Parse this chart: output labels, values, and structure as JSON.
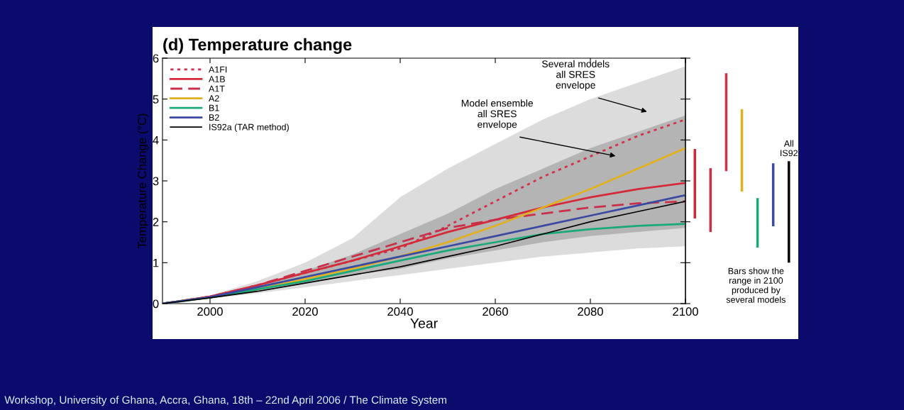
{
  "chart_data": [
    {
      "type": "line",
      "title": "(d) Temperature change",
      "xlabel": "Year",
      "ylabel": "Temperature Change (°C)",
      "x": [
        1990,
        2000,
        2010,
        2020,
        2030,
        2040,
        2050,
        2060,
        2070,
        2080,
        2090,
        2100
      ],
      "series": [
        {
          "color": "#dcdcdc",
          "values": [
            null,
            null,
            null,
            null,
            null,
            null,
            null,
            null,
            null,
            null,
            null,
            null
          ],
          "lower": [
            0,
            0.12,
            0.25,
            0.4,
            0.55,
            0.7,
            0.85,
            1.0,
            1.15,
            1.25,
            1.35,
            1.4
          ],
          "upper": [
            0,
            0.2,
            0.55,
            1.0,
            1.6,
            2.6,
            3.3,
            3.9,
            4.5,
            5.0,
            5.4,
            5.8
          ]
        },
        {
          "color": "#b4b4b4",
          "values": [
            null,
            null,
            null,
            null,
            null,
            null,
            null,
            null,
            null,
            null,
            null,
            null
          ],
          "lower": [
            0,
            0.15,
            0.3,
            0.5,
            0.7,
            0.85,
            1.1,
            1.3,
            1.5,
            1.65,
            1.75,
            1.85
          ],
          "upper": [
            0,
            0.2,
            0.45,
            0.8,
            1.2,
            1.7,
            2.2,
            2.8,
            3.3,
            3.8,
            4.2,
            4.6
          ]
        },
        {
          "name": "A1FI",
          "color": "#d4304a",
          "line_style": "dotted",
          "values": [
            0,
            0.17,
            0.45,
            0.75,
            1.05,
            1.35,
            1.9,
            2.5,
            3.1,
            3.6,
            4.1,
            4.5
          ]
        },
        {
          "name": "A1B",
          "color": "#d42a3a",
          "line_style": "solid",
          "values": [
            0,
            0.17,
            0.45,
            0.75,
            1.05,
            1.4,
            1.75,
            2.05,
            2.35,
            2.6,
            2.8,
            2.95
          ]
        },
        {
          "name": "A1T",
          "color": "#c8304a",
          "line_style": "dashed",
          "values": [
            0,
            0.17,
            0.45,
            0.8,
            1.15,
            1.5,
            1.85,
            2.05,
            2.2,
            2.35,
            2.45,
            2.5
          ]
        },
        {
          "name": "A2",
          "color": "#e0b020",
          "line_style": "solid",
          "values": [
            0,
            0.15,
            0.35,
            0.6,
            0.85,
            1.15,
            1.5,
            1.9,
            2.35,
            2.8,
            3.3,
            3.8
          ]
        },
        {
          "name": "B1",
          "color": "#1aaa7a",
          "line_style": "solid",
          "values": [
            0,
            0.15,
            0.35,
            0.55,
            0.8,
            1.05,
            1.3,
            1.5,
            1.7,
            1.82,
            1.9,
            1.95
          ]
        },
        {
          "name": "B2",
          "color": "#3a4aa0",
          "line_style": "solid",
          "values": [
            0,
            0.16,
            0.4,
            0.65,
            0.9,
            1.15,
            1.4,
            1.65,
            1.9,
            2.15,
            2.4,
            2.65
          ]
        },
        {
          "name": "IS92a (TAR method)",
          "color": "#000000",
          "line_style": "solid",
          "values": [
            0,
            0.14,
            0.3,
            0.5,
            0.7,
            0.9,
            1.15,
            1.4,
            1.7,
            2.0,
            2.25,
            2.5
          ]
        }
      ],
      "xlim": [
        1990,
        2100
      ],
      "xticks": [
        2000,
        2020,
        2040,
        2060,
        2080,
        2100
      ],
      "ylim": [
        0,
        6
      ],
      "yticks": [
        0,
        1,
        2,
        3,
        4,
        5,
        6
      ],
      "legend": "top left",
      "grid": false,
      "annotations": [
        "Several models\nall SRES\nenvelope",
        "Model ensemble\nall SRES\nenvelope",
        "Workshop, University of Ghana, Accra, Ghana, 18th – 22nd April 2006 / The Climate System"
      ]
    },
    {
      "type": "bar",
      "categories": [
        null,
        null,
        null,
        null,
        null,
        null,
        null
      ],
      "base": [
        2.08,
        1.75,
        3.24,
        2.74,
        1.37,
        1.89,
        1.0
      ],
      "values": [
        1.7,
        1.56,
        2.39,
        2.01,
        1.21,
        1.54,
        2.48
      ],
      "colors": [
        "#d42a3a",
        "#c8304a",
        "#d4304a",
        "#e0b020",
        "#1aaa7a",
        "#3a4aa0",
        "#000000"
      ],
      "ylim": [
        0,
        6
      ],
      "yticks": [
        0,
        1,
        2,
        3,
        4,
        5,
        6
      ],
      "tick_labels": false,
      "annotations": [
        "All\nIS92",
        "Bars show the\nrange in 2100\nproduced by\nseveral models"
      ]
    }
  ]
}
